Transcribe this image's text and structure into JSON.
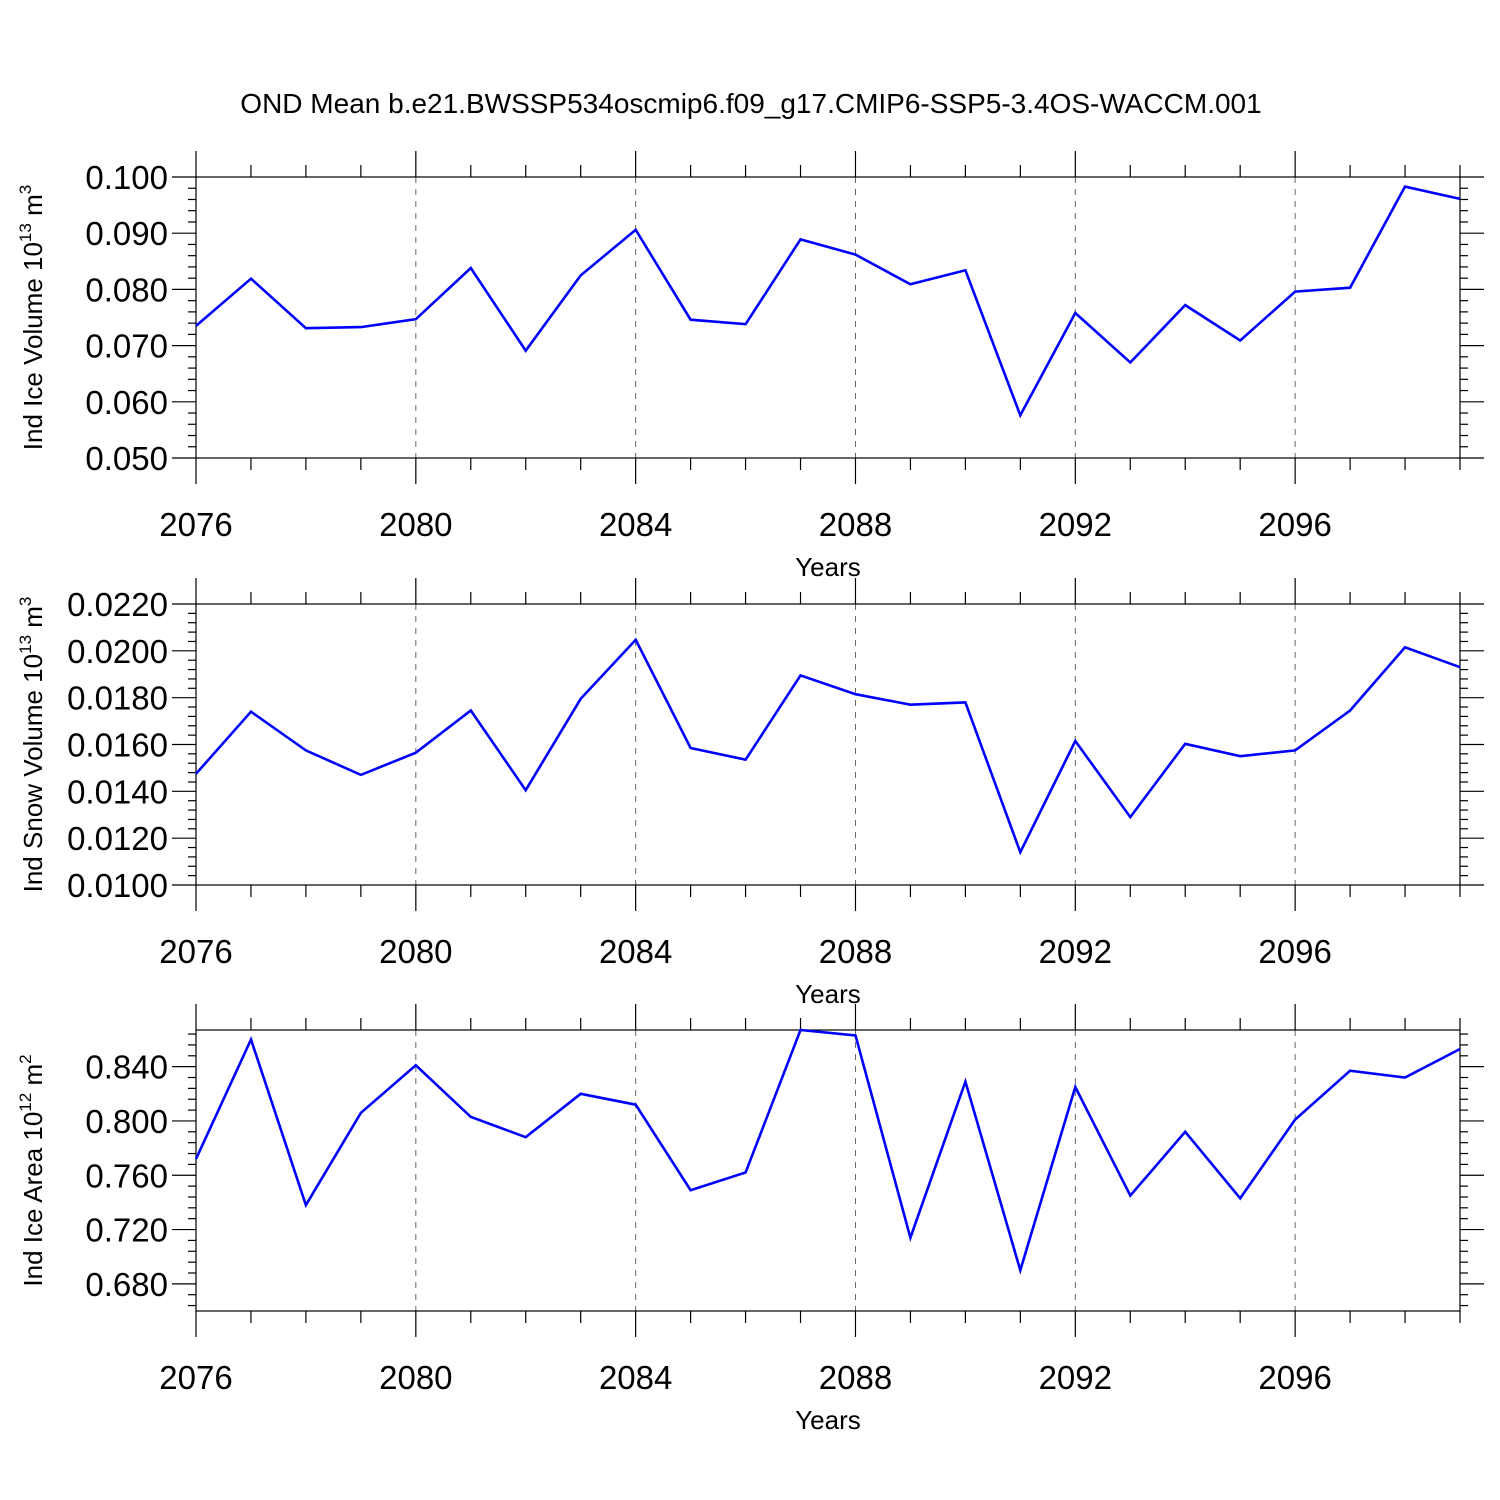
{
  "title": "OND Mean b.e21.BWSSP534oscmip6.f09_g17.CMIP6-SSP5-3.4OS-WACCM.001",
  "chart_data": [
    {
      "type": "line",
      "ylabel": {
        "text": "Ind Ice Volume 10",
        "sup1": "13",
        "mid": " m",
        "sup2": "3"
      },
      "xlabel": "Years",
      "xlim": [
        2076,
        2099
      ],
      "ylim": [
        0.05,
        0.1
      ],
      "x_ticks": [
        2076,
        2080,
        2084,
        2088,
        2092,
        2096
      ],
      "x_tick_labels": [
        "2076",
        "2080",
        "2084",
        "2088",
        "2092",
        "2096"
      ],
      "y_ticks": [
        0.05,
        0.06,
        0.07,
        0.08,
        0.09,
        0.1
      ],
      "y_tick_labels": [
        "0.050",
        "0.060",
        "0.070",
        "0.080",
        "0.090",
        "0.100"
      ],
      "y_minor_step": 0.002,
      "x": [
        2076,
        2077,
        2078,
        2079,
        2080,
        2081,
        2082,
        2083,
        2084,
        2085,
        2086,
        2087,
        2088,
        2089,
        2090,
        2091,
        2092,
        2093,
        2094,
        2095,
        2096,
        2097,
        2098,
        2099
      ],
      "values": [
        0.0735,
        0.0819,
        0.0731,
        0.0733,
        0.0747,
        0.0838,
        0.0691,
        0.0825,
        0.0906,
        0.0746,
        0.0738,
        0.0889,
        0.0862,
        0.0809,
        0.0834,
        0.0576,
        0.0758,
        0.067,
        0.0772,
        0.0709,
        0.0796,
        0.0803,
        0.0983,
        0.0961
      ],
      "color": "#0000ff"
    },
    {
      "type": "line",
      "ylabel": {
        "text": "Ind Snow Volume 10",
        "sup1": "13",
        "mid": " m",
        "sup2": "3"
      },
      "xlabel": "Years",
      "xlim": [
        2076,
        2099
      ],
      "ylim": [
        0.01,
        0.022
      ],
      "x_ticks": [
        2076,
        2080,
        2084,
        2088,
        2092,
        2096
      ],
      "x_tick_labels": [
        "2076",
        "2080",
        "2084",
        "2088",
        "2092",
        "2096"
      ],
      "y_ticks": [
        0.01,
        0.012,
        0.014,
        0.016,
        0.018,
        0.02,
        0.022
      ],
      "y_tick_labels": [
        "0.0100",
        "0.0120",
        "0.0140",
        "0.0160",
        "0.0180",
        "0.0200",
        "0.0220"
      ],
      "y_minor_step": 0.0004,
      "x": [
        2076,
        2077,
        2078,
        2079,
        2080,
        2081,
        2082,
        2083,
        2084,
        2085,
        2086,
        2087,
        2088,
        2089,
        2090,
        2091,
        2092,
        2093,
        2094,
        2095,
        2096,
        2097,
        2098,
        2099
      ],
      "values": [
        0.01475,
        0.0174,
        0.01575,
        0.0147,
        0.01565,
        0.01745,
        0.01405,
        0.01795,
        0.02047,
        0.01585,
        0.01535,
        0.01895,
        0.01815,
        0.0177,
        0.0178,
        0.0114,
        0.01615,
        0.0129,
        0.01603,
        0.0155,
        0.01575,
        0.01745,
        0.02015,
        0.0193
      ],
      "color": "#0000ff"
    },
    {
      "type": "line",
      "ylabel": {
        "text": "Ind Ice Area 10",
        "sup1": "12",
        "mid": " m",
        "sup2": "2"
      },
      "xlabel": "Years",
      "xlim": [
        2076,
        2099
      ],
      "ylim": [
        0.66,
        0.867
      ],
      "x_ticks": [
        2076,
        2080,
        2084,
        2088,
        2092,
        2096
      ],
      "x_tick_labels": [
        "2076",
        "2080",
        "2084",
        "2088",
        "2092",
        "2096"
      ],
      "y_ticks": [
        0.68,
        0.72,
        0.76,
        0.8,
        0.84
      ],
      "y_tick_labels": [
        "0.680",
        "0.720",
        "0.760",
        "0.800",
        "0.840"
      ],
      "y_minor_step": 0.008,
      "x": [
        2076,
        2077,
        2078,
        2079,
        2080,
        2081,
        2082,
        2083,
        2084,
        2085,
        2086,
        2087,
        2088,
        2089,
        2090,
        2091,
        2092,
        2093,
        2094,
        2095,
        2096,
        2097,
        2098,
        2099
      ],
      "values": [
        0.772,
        0.86,
        0.738,
        0.806,
        0.841,
        0.803,
        0.788,
        0.82,
        0.812,
        0.749,
        0.762,
        0.867,
        0.863,
        0.714,
        0.829,
        0.69,
        0.825,
        0.745,
        0.792,
        0.743,
        0.801,
        0.837,
        0.832,
        0.853
      ],
      "color": "#0000ff"
    }
  ]
}
